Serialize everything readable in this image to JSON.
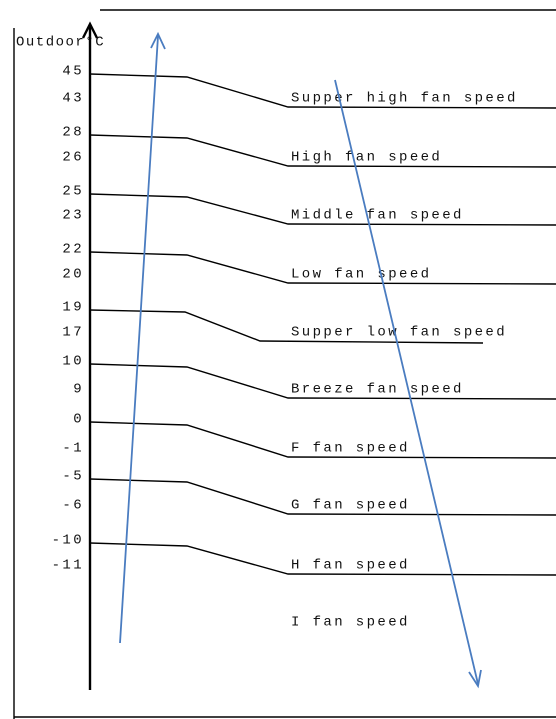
{
  "axis_label": "Outdoor°C",
  "bands": [
    {
      "upper": 45,
      "lower": 43,
      "speed": "Supper high fan speed"
    },
    {
      "upper": 28,
      "lower": 26,
      "speed": "High fan speed"
    },
    {
      "upper": 25,
      "lower": 23,
      "speed": "Middle fan speed"
    },
    {
      "upper": 22,
      "lower": 20,
      "speed": "Low fan speed"
    },
    {
      "upper": 19,
      "lower": 17,
      "speed": "Supper low fan speed"
    },
    {
      "upper": 10,
      "lower": 9,
      "speed": "Breeze fan speed"
    },
    {
      "upper": 0,
      "lower": -1,
      "speed": "F fan speed"
    },
    {
      "upper": -5,
      "lower": -6,
      "speed": "G fan speed"
    },
    {
      "upper": -10,
      "lower": -11,
      "speed": "H fan speed"
    }
  ],
  "last_speed": "I fan speed"
}
